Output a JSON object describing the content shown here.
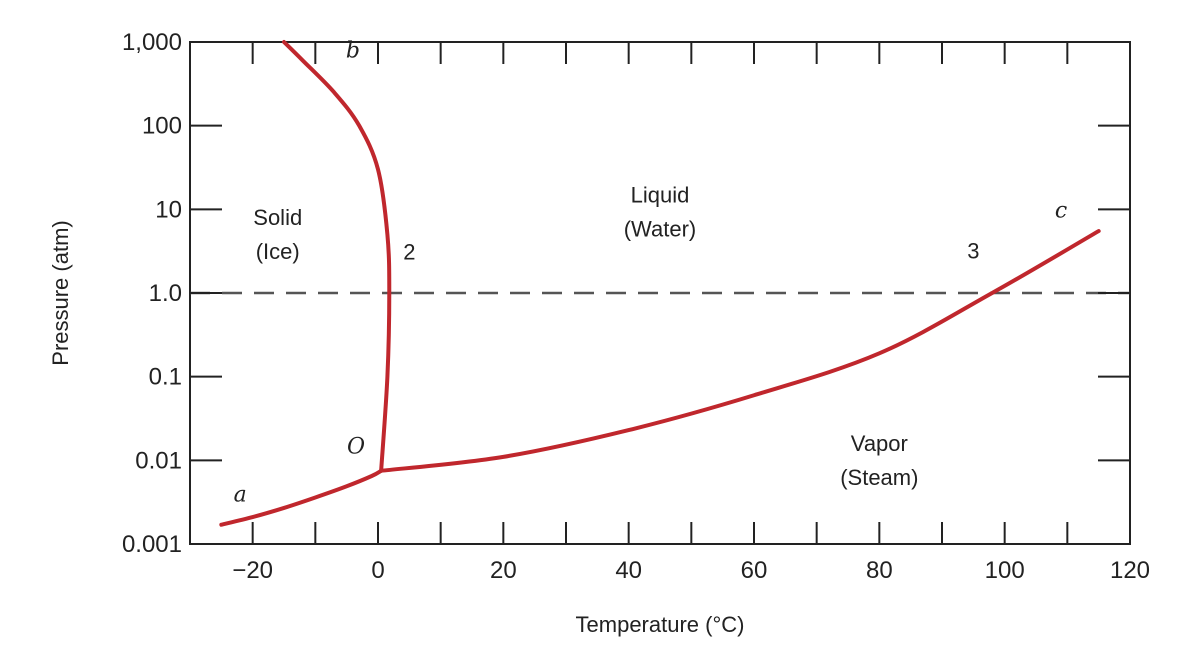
{
  "chart_data": {
    "type": "line",
    "title": "",
    "xlabel": "Temperature (°C)",
    "ylabel": "Pressure (atm)",
    "x_scale": "linear",
    "y_scale": "log",
    "xlim": [
      -30,
      120
    ],
    "ylim": [
      0.001,
      1000
    ],
    "x_ticks": [
      -20,
      0,
      20,
      40,
      60,
      80,
      100,
      120
    ],
    "x_tick_labels": [
      "−20",
      "0",
      "20",
      "40",
      "60",
      "80",
      "100",
      "120"
    ],
    "y_ticks": [
      0.001,
      0.01,
      0.1,
      1,
      10,
      100,
      1000
    ],
    "y_tick_labels": [
      "0.001",
      "0.01",
      "0.1",
      "1.0",
      "10",
      "100",
      "1,000"
    ],
    "grid": false,
    "line_color": "#c0272d",
    "reference_line": {
      "y": 1.0,
      "style": "dashed",
      "color": "#555555"
    },
    "series": [
      {
        "curve": "aO",
        "x": [
          -25,
          -20,
          -15,
          -10,
          -5,
          -1,
          0.5
        ],
        "y": [
          0.0017,
          0.0021,
          0.0027,
          0.0036,
          0.0049,
          0.0065,
          0.0075
        ]
      },
      {
        "curve": "Ob",
        "x": [
          0.5,
          1.5,
          1.8,
          1.5,
          0,
          -3,
          -7,
          -12,
          -15
        ],
        "y": [
          0.0075,
          0.1,
          1.0,
          5,
          30,
          100,
          250,
          600,
          1000
        ]
      },
      {
        "curve": "Oc",
        "x": [
          0.5,
          20,
          40,
          60,
          80,
          98,
          115
        ],
        "y": [
          0.0075,
          0.011,
          0.023,
          0.06,
          0.19,
          1.0,
          5.5
        ]
      }
    ],
    "curve_labels": [
      {
        "text": "a",
        "x": -22,
        "y": 0.0032
      },
      {
        "text": "b",
        "x": -4,
        "y": 650
      },
      {
        "text": "c",
        "x": 109,
        "y": 8
      }
    ],
    "point_labels": [
      {
        "text": "O",
        "x": -3.5,
        "y": 0.012
      },
      {
        "text": "2",
        "x": 5,
        "y": 2.5
      },
      {
        "text": "3",
        "x": 95,
        "y": 2.6
      }
    ],
    "region_labels": [
      {
        "lines": [
          "Solid",
          "(Ice)"
        ],
        "x": -16,
        "y": 6.5
      },
      {
        "lines": [
          "Liquid",
          "(Water)"
        ],
        "x": 45,
        "y": 12
      },
      {
        "lines": [
          "Vapor",
          "(Steam)"
        ],
        "x": 80,
        "y": 0.013
      }
    ]
  }
}
